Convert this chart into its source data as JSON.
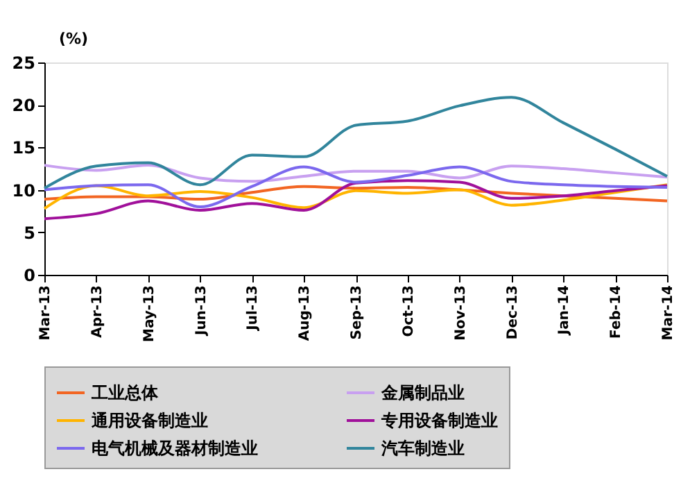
{
  "chart_data": {
    "type": "line",
    "ylabel": "(%)",
    "categories": [
      "Mar-13",
      "Apr-13",
      "May-13",
      "Jun-13",
      "Jul-13",
      "Aug-13",
      "Sep-13",
      "Oct-13",
      "Nov-13",
      "Dec-13",
      "Jan-14",
      "Feb-14",
      "Mar-14"
    ],
    "series": [
      {
        "name": "工业总体",
        "color": "#f26522",
        "values": [
          8.9,
          9.2,
          9.2,
          8.9,
          9.7,
          10.4,
          10.2,
          10.3,
          10.0,
          9.6,
          9.3,
          9.0,
          8.7
        ]
      },
      {
        "name": "金属制品业",
        "color": "#c8a0f0",
        "values": [
          12.9,
          12.3,
          12.9,
          11.4,
          11.0,
          11.6,
          12.2,
          12.2,
          11.4,
          12.8,
          12.5,
          12.0,
          11.5
        ]
      },
      {
        "name": "通用设备制造业",
        "color": "#ffb400",
        "values": [
          7.8,
          10.5,
          9.3,
          9.8,
          9.1,
          7.9,
          9.9,
          9.6,
          10.0,
          8.2,
          8.8,
          9.7,
          10.6
        ]
      },
      {
        "name": "专用设备制造业",
        "color": "#a0109a",
        "values": [
          6.6,
          7.2,
          8.7,
          7.6,
          8.4,
          7.6,
          10.8,
          11.1,
          10.9,
          9.0,
          9.3,
          9.9,
          10.5
        ]
      },
      {
        "name": "电气机械及器材制造业",
        "color": "#7b68ee",
        "values": [
          10.0,
          10.5,
          10.6,
          8.0,
          10.4,
          12.7,
          10.9,
          11.7,
          12.7,
          11.0,
          10.6,
          10.4,
          10.3
        ]
      },
      {
        "name": "汽车制造业",
        "color": "#31859c",
        "values": [
          10.2,
          12.8,
          13.2,
          10.6,
          14.1,
          13.9,
          17.6,
          18.1,
          19.9,
          20.9,
          17.9,
          14.8,
          11.6
        ]
      }
    ],
    "ylim": [
      0,
      25
    ],
    "yticks": [
      0,
      5,
      10,
      15,
      20,
      25
    ],
    "grid": false,
    "legend": "bottom",
    "line_style": "solid"
  }
}
